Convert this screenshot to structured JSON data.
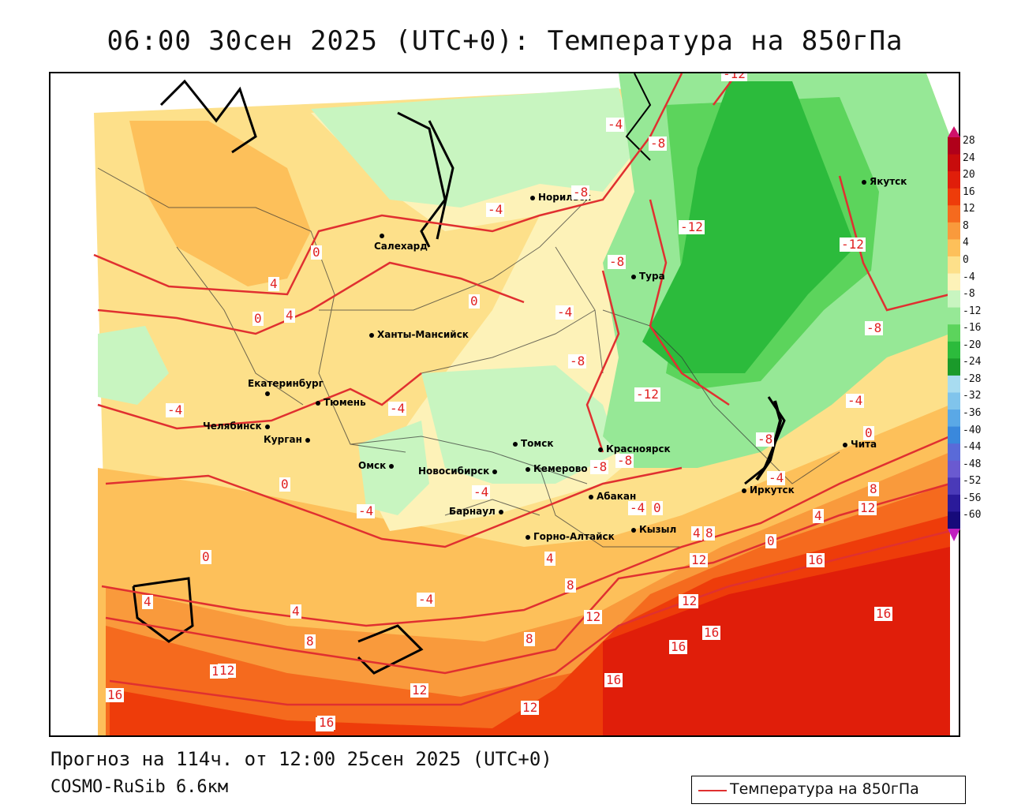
{
  "title": "06:00 30сен 2025 (UTC+0): Температура на 850гПа",
  "forecast_line": "Прогноз на 114ч. от 12:00 25сен 2025 (UTC+0)",
  "model_line": "COSMO-RuSib 6.6км",
  "legend": {
    "label": "Температура на 850гПа",
    "color": "#e03030"
  },
  "colorbar": {
    "labels": [
      "28",
      "24",
      "20",
      "16",
      "12",
      "8",
      "4",
      "0",
      "-4",
      "-8",
      "-12",
      "-16",
      "-20",
      "-24",
      "-28",
      "-32",
      "-36",
      "-40",
      "-44",
      "-48",
      "-52",
      "-56",
      "-60"
    ],
    "colors": [
      "#b0001a",
      "#c80c0c",
      "#e01e0a",
      "#ee3c0a",
      "#f56a1e",
      "#f99a3c",
      "#fdc05a",
      "#fde08a",
      "#fdf2b8",
      "#c8f5c0",
      "#96e896",
      "#5cd45c",
      "#2cbb3c",
      "#1a9a2a",
      "#a8dcf0",
      "#80c4ec",
      "#5aa8e6",
      "#3a88dc",
      "#5a6ad8",
      "#6a5ad0",
      "#4a3ab8",
      "#2a1a9a",
      "#160a7a"
    ]
  },
  "cities": [
    {
      "name": "Якутск"
    },
    {
      "name": "Норильск"
    },
    {
      "name": "Салехард"
    },
    {
      "name": "Тура"
    },
    {
      "name": "Ханты-Мансийск"
    },
    {
      "name": "Екатеринбург"
    },
    {
      "name": "Тюмень"
    },
    {
      "name": "Челябинск"
    },
    {
      "name": "Курган"
    },
    {
      "name": "Омск"
    },
    {
      "name": "Новосибирск"
    },
    {
      "name": "Томск"
    },
    {
      "name": "Кемерово"
    },
    {
      "name": "Красноярск"
    },
    {
      "name": "Барнаул"
    },
    {
      "name": "Абакан"
    },
    {
      "name": "Кызыл"
    },
    {
      "name": "Горно-Алтайск"
    },
    {
      "name": "Иркутск"
    },
    {
      "name": "Чита"
    }
  ],
  "contour_labels": [
    "-12",
    "-4",
    "-8",
    "-8",
    "-4",
    "-12",
    "-12",
    "-8",
    "-8",
    "0",
    "4",
    "0",
    "4",
    "0",
    "-4",
    "-8",
    "-12",
    "-4",
    "-4",
    "-8",
    "0",
    "-4",
    "-8",
    "-8",
    "0",
    "-4",
    "-4",
    "-4",
    "0",
    "-4",
    "-4",
    "8",
    "12",
    "4",
    "0",
    "4",
    "8",
    "0",
    "4",
    "4",
    "8",
    "12",
    "12",
    "16",
    "16",
    "12",
    "16",
    "16",
    "12",
    "12",
    "16",
    "4",
    "8",
    "8",
    "12",
    "16",
    "16",
    "12",
    "12",
    "16"
  ]
}
